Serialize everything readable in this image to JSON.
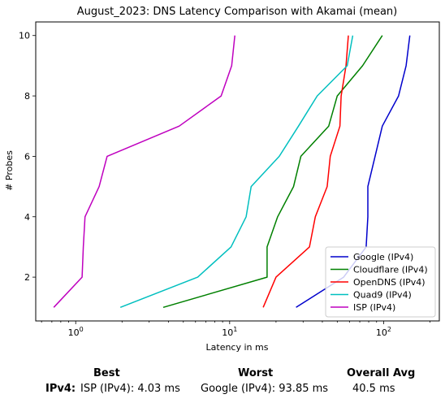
{
  "chart_data": {
    "type": "line",
    "title": "August_2023: DNS Latency Comparison with Akamai (mean)",
    "xlabel": "Latency in ms",
    "ylabel": "# Probes",
    "xscale": "log",
    "xlim": [
      0.55,
      230
    ],
    "ylim": [
      0.55,
      10.45
    ],
    "xticks": [
      {
        "value": 1,
        "base": "10",
        "exp": "0"
      },
      {
        "value": 10,
        "base": "10",
        "exp": "1"
      },
      {
        "value": 100,
        "base": "10",
        "exp": "2"
      }
    ],
    "yticks": [
      2,
      4,
      6,
      8,
      10
    ],
    "grid": false,
    "legend_position": "lower-right",
    "series": [
      {
        "name": "Google (IPv4)",
        "color": "#0000cc",
        "points": [
          [
            27,
            1
          ],
          [
            55,
            2
          ],
          [
            77,
            3
          ],
          [
            79,
            4
          ],
          [
            79,
            5
          ],
          [
            88,
            6
          ],
          [
            98,
            7
          ],
          [
            125,
            8
          ],
          [
            140,
            9
          ],
          [
            148,
            10
          ]
        ]
      },
      {
        "name": "Cloudflare (IPv4)",
        "color": "#008000",
        "points": [
          [
            3.7,
            1
          ],
          [
            17.5,
            2
          ],
          [
            17.5,
            3
          ],
          [
            20.5,
            4
          ],
          [
            26,
            5
          ],
          [
            29,
            6
          ],
          [
            44,
            7
          ],
          [
            50,
            8
          ],
          [
            73,
            9
          ],
          [
            98,
            10
          ]
        ]
      },
      {
        "name": "OpenDNS (IPv4)",
        "color": "#ff0000",
        "points": [
          [
            16.5,
            1
          ],
          [
            20,
            2
          ],
          [
            33,
            3
          ],
          [
            36,
            4
          ],
          [
            43,
            5
          ],
          [
            45,
            6
          ],
          [
            52,
            7
          ],
          [
            53,
            8
          ],
          [
            57,
            9
          ],
          [
            59,
            10
          ]
        ]
      },
      {
        "name": "Quad9 (IPv4)",
        "color": "#00bfbf",
        "points": [
          [
            1.95,
            1
          ],
          [
            6.2,
            2
          ],
          [
            10.2,
            3
          ],
          [
            12.8,
            4
          ],
          [
            13.8,
            5
          ],
          [
            21,
            6
          ],
          [
            28,
            7
          ],
          [
            37,
            8
          ],
          [
            58,
            9
          ],
          [
            63,
            10
          ]
        ]
      },
      {
        "name": "ISP (IPv4)",
        "color": "#bf00bf",
        "points": [
          [
            0.72,
            1
          ],
          [
            1.1,
            2
          ],
          [
            1.12,
            3
          ],
          [
            1.15,
            4
          ],
          [
            1.42,
            5
          ],
          [
            1.6,
            6
          ],
          [
            4.7,
            7
          ],
          [
            8.8,
            8
          ],
          [
            10.3,
            9
          ],
          [
            10.8,
            10
          ]
        ]
      }
    ]
  },
  "summary": {
    "best_header": "Best",
    "worst_header": "Worst",
    "avg_header": "Overall Avg",
    "row_label": "IPv4",
    "best_value": "ISP (IPv4): 4.03 ms",
    "worst_value": "Google (IPv4): 93.85 ms",
    "avg_value": "40.5 ms"
  }
}
